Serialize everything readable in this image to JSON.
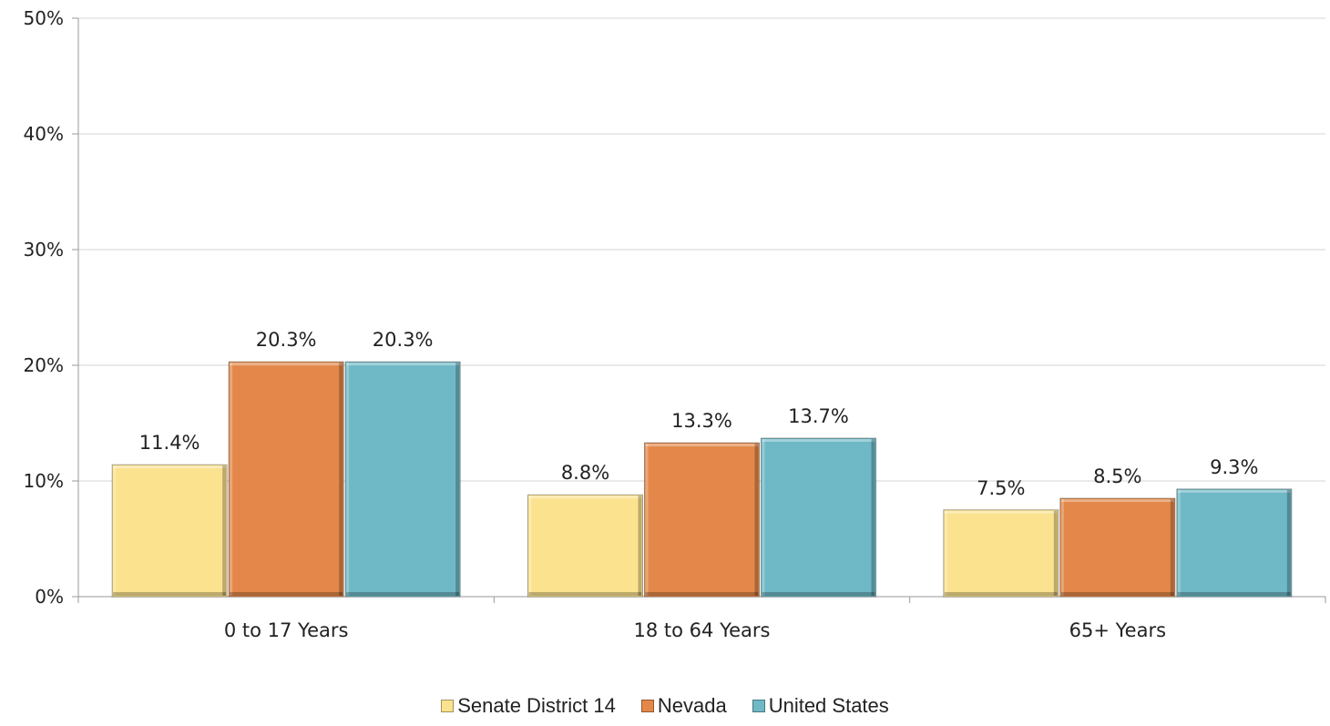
{
  "chart_data": {
    "type": "bar",
    "categories": [
      "0 to 17 Years",
      "18 to 64 Years",
      "65+ Years"
    ],
    "series": [
      {
        "name": "Senate District 14",
        "values": [
          11.4,
          8.8,
          7.5
        ],
        "labels": [
          "11.4%",
          "8.8%",
          "7.5%"
        ],
        "color": "#FBE28F"
      },
      {
        "name": "Nevada",
        "values": [
          20.3,
          13.3,
          8.5
        ],
        "labels": [
          "20.3%",
          "13.3%",
          "8.5%"
        ],
        "color": "#E3884A"
      },
      {
        "name": "United States",
        "values": [
          20.3,
          13.7,
          9.3
        ],
        "labels": [
          "20.3%",
          "13.7%",
          "9.3%"
        ],
        "color": "#6FB8C6"
      }
    ],
    "ylim": [
      0,
      50
    ],
    "yticks": [
      0,
      10,
      20,
      30,
      40,
      50
    ],
    "ytick_labels": [
      "0%",
      "10%",
      "20%",
      "30%",
      "40%",
      "50%"
    ],
    "grid": true,
    "legend_position": "bottom"
  }
}
